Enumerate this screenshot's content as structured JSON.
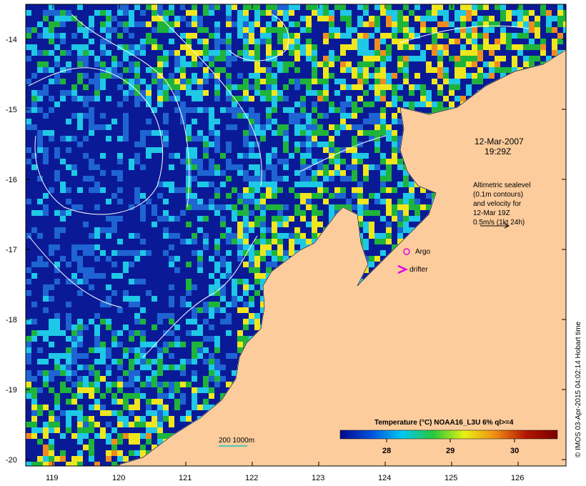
{
  "map": {
    "lat_ticks": [
      "-14",
      "-15",
      "-16",
      "-17",
      "-18",
      "-19",
      "-20"
    ],
    "lon_ticks": [
      "119",
      "120",
      "121",
      "122",
      "123",
      "124",
      "125",
      "126"
    ],
    "colors": {
      "land": "#fccc9c",
      "deep_blue": "#0a1a96",
      "mid_blue": "#1e64d2",
      "cyan": "#1ec8e6",
      "green": "#1eb43c",
      "yellow": "#f0e61e",
      "orange": "#f08c1e",
      "red": "#b41e00",
      "dark_red": "#8c0a00"
    }
  },
  "annotations": {
    "date": "12-Mar-2007",
    "time": "19:29Z",
    "altimetry": [
      "Altimetric sealevel",
      "(0.1m contours)",
      "and velocity for",
      "12-Mar 19Z",
      "0.5m/s (1kt 24h)"
    ],
    "argo_label": "Argo",
    "drifter_label": "drifter",
    "scale_label": "200  1000m"
  },
  "legend": {
    "title": "Temperature (°C) NOAA16_L3U 6% ql>=4",
    "ticks": [
      "28",
      "29",
      "30"
    ],
    "stops": [
      "#000a8c",
      "#0050dc",
      "#00c8f0",
      "#28c83c",
      "#e6f014",
      "#f08c14",
      "#b41400",
      "#780000"
    ]
  },
  "credit": "© IMOS 03-Apr-2015 04:02:14 Hobart time"
}
